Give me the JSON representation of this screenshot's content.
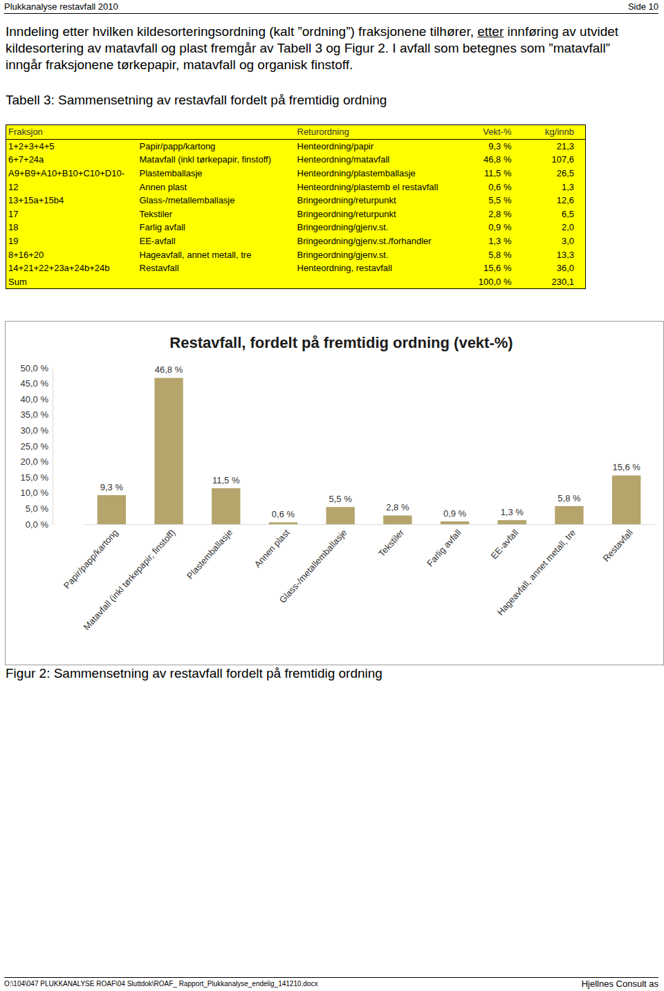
{
  "header": {
    "left": "Plukkanalyse restavfall 2010",
    "right": "Side 10"
  },
  "intro": {
    "before": "Inndeling etter hvilken kildesorteringsordning (kalt ”ordning”) fraksjonene tilhører, ",
    "underlined": "etter",
    "after": " innføring av utvidet kildesortering av matavfall og plast fremgår av Tabell 3 og Figur 2. I avfall som betegnes som ”matavfall” inngår fraksjonene tørkepapir, matavfall og organisk finstoff."
  },
  "table": {
    "caption": "Tabell 3: Sammensetning av restavfall fordelt på fremtidig ordning",
    "header": [
      "Fraksjon",
      null,
      "Returordning",
      "Vekt-%",
      "kg/innb"
    ],
    "rows": [
      [
        "1+2+3+4+5",
        "Papir/papp/kartong",
        "Henteordning/papir",
        "9,3 %",
        "21,3"
      ],
      [
        "6+7+24a",
        "Matavfall (inkl tørkepapir, finstoff)",
        "Henteordning/matavfall",
        "46,8 %",
        "107,6"
      ],
      [
        "A9+B9+A10+B10+C10+D10-",
        "Plastemballasje",
        "Henteordning/plastemballasje",
        "11,5 %",
        "26,5"
      ],
      [
        "12",
        "Annen plast",
        "Henteordning/plastemb el restavfall",
        "0,6 %",
        "1,3"
      ],
      [
        "13+15a+15b4",
        "Glass-/metallemballasje",
        "Bringeordning/returpunkt",
        "5,5 %",
        "12,6"
      ],
      [
        "17",
        "Tekstiler",
        "Bringeordning/returpunkt",
        "2,8 %",
        "6,5"
      ],
      [
        "18",
        "Farlig avfall",
        "Bringeordning/gjenv.st.",
        "0,9 %",
        "2,0"
      ],
      [
        "19",
        "EE-avfall",
        "Bringeordning/gjenv.st./forhandler",
        "1,3 %",
        "3,0"
      ],
      [
        "8+16+20",
        "Hageavfall, annet metall, tre",
        "Bringeordning/gjenv.st.",
        "5,8 %",
        "13,3"
      ],
      [
        "14+21+22+23a+24b+24b",
        "Restavfall",
        "Henteordning, restavfall",
        "15,6 %",
        "36,0"
      ],
      [
        "Sum",
        null,
        null,
        "100,0 %",
        "230,1"
      ]
    ]
  },
  "chart_data": {
    "type": "bar",
    "title": "Restavfall, fordelt på fremtidig ordning (vekt-%)",
    "categories": [
      "Papir/papp/kartong",
      "Matavfall (inkl tørkepapir, finstoff)",
      "Plastemballasje",
      "Annen plast",
      "Glass-/metallemballasje",
      "Tekstiler",
      "Farlig avfall",
      "EE-avfall",
      "Hageavfall, annet metall, tre",
      "Restavfall"
    ],
    "values": [
      9.3,
      46.8,
      11.5,
      0.6,
      5.5,
      2.8,
      0.9,
      1.3,
      5.8,
      15.6
    ],
    "value_labels": [
      "9,3 %",
      "46,8 %",
      "11,5 %",
      "0,6 %",
      "5,5 %",
      "2,8 %",
      "0,9 %",
      "1,3 %",
      "5,8 %",
      "15,6 %"
    ],
    "color": "#b5a46c",
    "data_labels": true,
    "grid": false,
    "ylim": [
      0,
      50
    ],
    "yticks": [
      {
        "value": 0,
        "label": "0,0 %"
      },
      {
        "value": 5,
        "label": "5,0 %"
      },
      {
        "value": 10,
        "label": "10,0 %"
      },
      {
        "value": 15,
        "label": "15,0 %"
      },
      {
        "value": 20,
        "label": "20,0 %"
      },
      {
        "value": 25,
        "label": "25,0 %"
      },
      {
        "value": 30,
        "label": "30,0 %"
      },
      {
        "value": 35,
        "label": "35,0 %"
      },
      {
        "value": 40,
        "label": "40,0 %"
      },
      {
        "value": 45,
        "label": "45,0 %"
      },
      {
        "value": 50,
        "label": "50,0 %"
      }
    ]
  },
  "figure_caption": "Figur 2: Sammensetning av restavfall fordelt på fremtidig ordning",
  "footer": {
    "path": "O:\\104\\047 PLUKKANALYSE ROAF\\04 Sluttdok\\ROAF_ Rapport_Plukkanalyse_endelig_141210.docx",
    "company": "Hjellnes Consult as"
  }
}
